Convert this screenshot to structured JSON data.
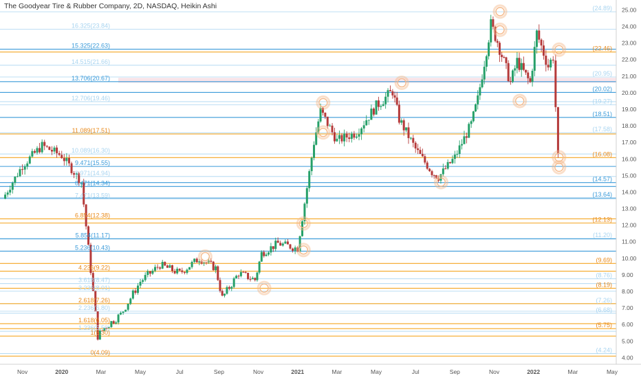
{
  "title": "The Goodyear Tire & Rubber Company, 2D, NASDAQ, Heikin Ashi",
  "colors": {
    "orange": "#f5a623",
    "orange_text": "#e8891a",
    "blue": "#3a9ad9",
    "light_blue": "#a8d4f0",
    "up": "#26a069",
    "down": "#b53a3a",
    "highlight": "#f5d8e0",
    "circle": "#f5b98a"
  },
  "chart_data": {
    "type": "candlestick",
    "title": "The Goodyear Tire & Rubber Company, 2D, NASDAQ, Heikin Ashi",
    "ylim": [
      3.6,
      25.6
    ],
    "y_ticks": [
      "4.00",
      "5.00",
      "6.00",
      "7.00",
      "8.00",
      "9.00",
      "10.00",
      "11.00",
      "12.00",
      "13.00",
      "14.00",
      "15.00",
      "16.00",
      "17.00",
      "18.00",
      "19.00",
      "20.00",
      "21.00",
      "22.00",
      "23.00",
      "24.00",
      "25.00"
    ],
    "x_ticks": [
      "Nov",
      "2020",
      "Mar",
      "May",
      "Jul",
      "Sep",
      "Nov",
      "2021",
      "Mar",
      "May",
      "Jul",
      "Sep",
      "Nov",
      "2022",
      "Mar",
      "May"
    ],
    "price_path": [
      [
        "Oct 2019",
        13.6
      ],
      [
        "Nov 2019",
        15.6
      ],
      [
        "Dec 2019",
        16.8
      ],
      [
        "Jan 2020",
        16.2
      ],
      [
        "Feb 2020",
        14.6
      ],
      [
        "Mar 2020",
        5.3
      ],
      [
        "Mar 2020",
        5.8
      ],
      [
        "Apr 2020",
        6.6
      ],
      [
        "May 2020",
        8.6
      ],
      [
        "Jun 2020",
        9.6
      ],
      [
        "Jul 2020",
        9.1
      ],
      [
        "Aug 2020",
        10.0
      ],
      [
        "Sep 2020",
        9.4
      ],
      [
        "Sep 2020",
        7.6
      ],
      [
        "Oct 2020",
        9.1
      ],
      [
        "Nov 2020",
        8.7
      ],
      [
        "Nov 2020",
        10.3
      ],
      [
        "Dec 2020",
        10.9
      ],
      [
        "Jan 2021",
        10.6
      ],
      [
        "Feb 2021",
        17.0
      ],
      [
        "Feb 2021",
        18.9
      ],
      [
        "Mar 2021",
        17.1
      ],
      [
        "Apr 2021",
        17.6
      ],
      [
        "May 2021",
        19.2
      ],
      [
        "Jun 2021",
        20.1
      ],
      [
        "Jun 2021",
        18.4
      ],
      [
        "Jul 2021",
        16.6
      ],
      [
        "Aug 2021",
        15.2
      ],
      [
        "Aug 2021",
        14.9
      ],
      [
        "Sep 2021",
        16.1
      ],
      [
        "Oct 2021",
        18.1
      ],
      [
        "Oct 2021",
        19.6
      ],
      [
        "Nov 2021",
        24.1
      ],
      [
        "Nov 2021",
        23.1
      ],
      [
        "Dec 2021",
        20.6
      ],
      [
        "Dec 2021",
        21.9
      ],
      [
        "Jan 2022",
        20.6
      ],
      [
        "Jan 2022",
        23.6
      ],
      [
        "Feb 2022",
        21.6
      ],
      [
        "Feb 2022",
        22.2
      ],
      [
        "Feb 2022",
        16.1
      ]
    ],
    "levels": [
      {
        "label": "(24.89)",
        "price": 24.89,
        "style": "light-blue",
        "side": "right"
      },
      {
        "label": "(22.46)",
        "price": 22.46,
        "style": "orange",
        "side": "right"
      },
      {
        "label": "(20.95)",
        "price": 20.95,
        "style": "light-blue",
        "side": "right"
      },
      {
        "label": "(20.02)",
        "price": 20.02,
        "style": "blue",
        "side": "right"
      },
      {
        "label": "(19.27)",
        "price": 19.27,
        "style": "light-blue",
        "side": "right"
      },
      {
        "label": "(18.51)",
        "price": 18.51,
        "style": "blue",
        "side": "right"
      },
      {
        "label": "(17.58)",
        "price": 17.58,
        "style": "light-blue",
        "side": "right"
      },
      {
        "label": "(16.08)",
        "price": 16.08,
        "style": "orange",
        "side": "right"
      },
      {
        "label": "(14.57)",
        "price": 14.57,
        "style": "blue",
        "side": "right"
      },
      {
        "label": "(13.64)",
        "price": 13.64,
        "style": "blue",
        "side": "right"
      },
      {
        "label": "(12.13)",
        "price": 12.13,
        "style": "orange",
        "side": "right"
      },
      {
        "label": "(11.20)",
        "price": 11.2,
        "style": "light-blue",
        "side": "right"
      },
      {
        "label": "(9.69)",
        "price": 9.69,
        "style": "orange",
        "side": "right"
      },
      {
        "label": "(8.76)",
        "price": 8.76,
        "style": "light-blue",
        "side": "right"
      },
      {
        "label": "(8.19)",
        "price": 8.19,
        "style": "orange",
        "side": "right"
      },
      {
        "label": "(7.26)",
        "price": 7.26,
        "style": "light-blue",
        "side": "right"
      },
      {
        "label": "(6.68)",
        "price": 6.68,
        "style": "light-blue",
        "side": "right"
      },
      {
        "label": "(5.75)",
        "price": 5.75,
        "style": "orange",
        "side": "right"
      },
      {
        "label": "(4.24)",
        "price": 4.24,
        "style": "light-blue",
        "side": "right"
      },
      {
        "label": "16.325(23.84)",
        "price": 23.84,
        "style": "light-blue",
        "side": "left"
      },
      {
        "label": "15.325(22.63)",
        "price": 22.63,
        "style": "blue",
        "side": "left"
      },
      {
        "label": "14.515(21.66)",
        "price": 21.66,
        "style": "light-blue",
        "side": "left"
      },
      {
        "label": "13.706(20.67)",
        "price": 20.67,
        "style": "blue",
        "side": "left"
      },
      {
        "label": "12.706(19.46)",
        "price": 19.46,
        "style": "light-blue",
        "side": "left"
      },
      {
        "label": "11.089(17.51)",
        "price": 17.51,
        "style": "orange",
        "side": "left"
      },
      {
        "label": "10.089(16.30)",
        "price": 16.3,
        "style": "light-blue",
        "side": "left"
      },
      {
        "label": "9.471(15.55)",
        "price": 15.55,
        "style": "blue",
        "side": "left"
      },
      {
        "label": "8.971(14.94)",
        "price": 14.94,
        "style": "light-blue",
        "side": "left"
      },
      {
        "label": "8.471(14.34)",
        "price": 14.34,
        "style": "blue",
        "side": "left"
      },
      {
        "label": "7.471(13.59)",
        "price": 13.59,
        "style": "light-blue",
        "side": "left"
      },
      {
        "label": "6.854(12.38)",
        "price": 12.38,
        "style": "orange",
        "side": "left"
      },
      {
        "label": "5.854(11.17)",
        "price": 11.17,
        "style": "blue",
        "side": "left"
      },
      {
        "label": "5.236(10.43)",
        "price": 10.43,
        "style": "blue",
        "side": "left"
      },
      {
        "label": "4.236(9.22)",
        "price": 9.22,
        "style": "orange",
        "side": "left"
      },
      {
        "label": "3.618(8.47)",
        "price": 8.47,
        "style": "light-blue",
        "side": "left"
      },
      {
        "label": "3.236(8.01)",
        "price": 8.01,
        "style": "light-blue",
        "side": "left"
      },
      {
        "label": "2.618(7.26)",
        "price": 7.26,
        "style": "orange",
        "side": "left"
      },
      {
        "label": "2.236(6.80)",
        "price": 6.8,
        "style": "light-blue",
        "side": "left"
      },
      {
        "label": "1.618(6.05)",
        "price": 6.05,
        "style": "orange",
        "side": "left"
      },
      {
        "label": "1.236(5.59)",
        "price": 5.59,
        "style": "light-blue",
        "side": "left"
      },
      {
        "label": "1(5.30)",
        "price": 5.3,
        "style": "orange",
        "side": "left"
      },
      {
        "label": "0(4.09)",
        "price": 4.09,
        "style": "orange",
        "side": "left"
      }
    ],
    "highlight_band": [
      20.6,
      20.9
    ],
    "circled_points": [
      [
        "Aug 2020",
        10.1
      ],
      [
        "Nov 2020",
        8.2
      ],
      [
        "Jan 2021",
        12.1
      ],
      [
        "Jan 2021",
        10.5
      ],
      [
        "Feb 2021",
        17.6
      ],
      [
        "Feb 2021",
        19.4
      ],
      [
        "Jun 2021",
        20.6
      ],
      [
        "Aug 2021",
        14.6
      ],
      [
        "Nov 2021",
        24.9
      ],
      [
        "Nov 2021",
        23.8
      ],
      [
        "Dec 2021",
        19.5
      ],
      [
        "Feb 2022",
        22.6
      ],
      [
        "Feb 2022",
        16.1
      ],
      [
        "Feb 2022",
        15.5
      ]
    ]
  }
}
